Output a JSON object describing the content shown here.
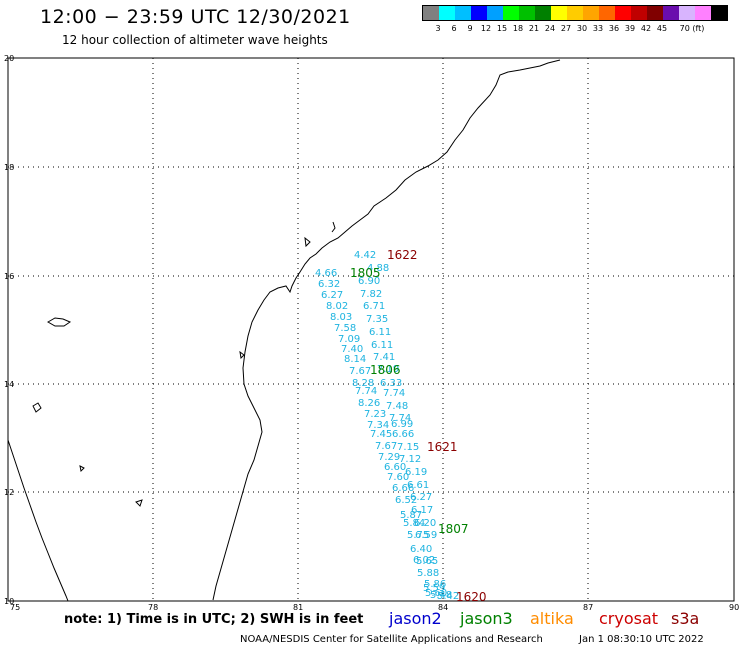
{
  "header": {
    "title": "12:00 − 23:59 UTC 12/30/2021",
    "subtitle": "12 hour collection of altimeter wave heights"
  },
  "color_scale": {
    "colors": [
      "#808080",
      "#00ffff",
      "#00bfff",
      "#0000ff",
      "#00a0ff",
      "#00ff00",
      "#00c000",
      "#008000",
      "#ffff00",
      "#ffcc00",
      "#ffa500",
      "#ff6600",
      "#ff0000",
      "#c00000",
      "#800000",
      "#6a0dad",
      "#d8b4fe",
      "#ff80ff",
      "#000000"
    ],
    "labels": [
      "3",
      "6",
      "9",
      "12",
      "15",
      "18",
      "21",
      "24",
      "27",
      "30",
      "33",
      "36",
      "39",
      "42",
      "45",
      "70 (ft)"
    ]
  },
  "map": {
    "lon_ticks": [
      "75",
      "78",
      "81",
      "84",
      "87",
      "90"
    ],
    "lat_ticks": [
      "20",
      "18",
      "16",
      "14",
      "12",
      "10"
    ],
    "pass_labels": [
      {
        "text": "1622",
        "color": "#8b0000"
      },
      {
        "text": "1805",
        "color": "#008000"
      },
      {
        "text": "1806",
        "color": "#008000"
      },
      {
        "text": "1621",
        "color": "#8b0000"
      },
      {
        "text": "1807",
        "color": "#008000"
      },
      {
        "text": "1620",
        "color": "#8b0000"
      }
    ],
    "swh_values": [
      "4.42",
      "4.66",
      "4.88",
      "6.90",
      "6.32",
      "7.82",
      "6.27",
      "6.71",
      "8.02",
      "7.35",
      "8.03",
      "6.11",
      "7.58",
      "6.11",
      "7.09",
      "7.41",
      "7.40",
      "7.19",
      "8.14",
      "6.33",
      "7.67",
      "7.74",
      "8.28",
      "7.48",
      "7.74",
      "7.74",
      "8.26",
      "6.99",
      "7.23",
      "6.66",
      "7.34",
      "7.15",
      "7.45",
      "7.12",
      "7.67",
      "6.19",
      "7.29",
      "6.61",
      "6.60",
      "6.27",
      "7.60",
      "6.17",
      "6.66",
      "6.20",
      "6.52",
      "6.59",
      "5.87",
      "6.40",
      "5.84",
      "6.02",
      "5.75",
      "5.65",
      "5.88",
      "5.86",
      "5.59",
      "5.60",
      "5.48",
      "5.42"
    ]
  },
  "legend": {
    "note": "note:  1) Time is in UTC;  2) SWH is in feet",
    "satellites": [
      {
        "name": "jason2",
        "color": "#0000cc"
      },
      {
        "name": "jason3",
        "color": "#008000"
      },
      {
        "name": "altika",
        "color": "#ff8c00"
      },
      {
        "name": "cryosat",
        "color": "#cc0000"
      },
      {
        "name": "s3a",
        "color": "#8b0000"
      }
    ]
  },
  "footer": {
    "credit": "NOAA/NESDIS Center for Satellite Applications and Research",
    "timestamp": "Jan  1 08:30:10 UTC 2022"
  }
}
